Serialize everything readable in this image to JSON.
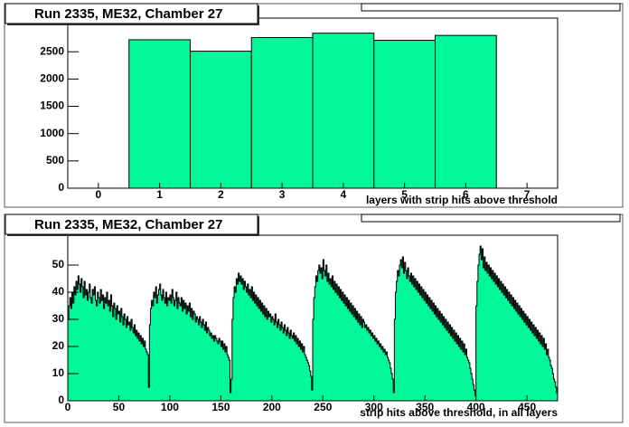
{
  "chart_data": [
    {
      "type": "histogram",
      "title": "Run 2335, ME32, Chamber 27",
      "x_label": "layers with strip hits above threshold",
      "bins": [
        0.5,
        1.5,
        2.5,
        3.5,
        4.5,
        5.5,
        6.5
      ],
      "values": [
        2720,
        2510,
        2760,
        2840,
        2710,
        2800
      ],
      "color": "#00f79a",
      "xlim": [
        -0.5,
        7.5
      ],
      "ylim": [
        0,
        3117
      ],
      "xticks": [
        0,
        1,
        2,
        3,
        4,
        5,
        6,
        7
      ],
      "yticks": [
        0,
        500,
        1000,
        1500,
        2000,
        2500
      ]
    },
    {
      "type": "histogram",
      "title": "Run 2335, ME32, Chamber 27",
      "x_label": "strip hits above threshold, in all layers",
      "bins": [
        0,
        1,
        2,
        3,
        4,
        5,
        6,
        7,
        8,
        9,
        10,
        11,
        12,
        13,
        14,
        15,
        16,
        17,
        18,
        19,
        20,
        21,
        22,
        23,
        24,
        25,
        26,
        27,
        28,
        29,
        30,
        31,
        32,
        33,
        34,
        35,
        36,
        37,
        38,
        39,
        40,
        41,
        42,
        43,
        44,
        45,
        46,
        47,
        48,
        49,
        50,
        51,
        52,
        53,
        54,
        55,
        56,
        57,
        58,
        59,
        60,
        61,
        62,
        63,
        64,
        65,
        66,
        67,
        68,
        69,
        70,
        71,
        72,
        73,
        74,
        75,
        76,
        77,
        78,
        79,
        80,
        81,
        82,
        83,
        84,
        85,
        86,
        87,
        88,
        89,
        90,
        91,
        92,
        93,
        94,
        95,
        96,
        97,
        98,
        99,
        100,
        101,
        102,
        103,
        104,
        105,
        106,
        107,
        108,
        109,
        110,
        111,
        112,
        113,
        114,
        115,
        116,
        117,
        118,
        119,
        120,
        121,
        122,
        123,
        124,
        125,
        126,
        127,
        128,
        129,
        130,
        131,
        132,
        133,
        134,
        135,
        136,
        137,
        138,
        139,
        140,
        141,
        142,
        143,
        144,
        145,
        146,
        147,
        148,
        149,
        150,
        151,
        152,
        153,
        154,
        155,
        156,
        157,
        158,
        159,
        160,
        161,
        162,
        163,
        164,
        165,
        166,
        167,
        168,
        169,
        170,
        171,
        172,
        173,
        174,
        175,
        176,
        177,
        178,
        179,
        180,
        181,
        182,
        183,
        184,
        185,
        186,
        187,
        188,
        189,
        190,
        191,
        192,
        193,
        194,
        195,
        196,
        197,
        198,
        199,
        200,
        201,
        202,
        203,
        204,
        205,
        206,
        207,
        208,
        209,
        210,
        211,
        212,
        213,
        214,
        215,
        216,
        217,
        218,
        219,
        220,
        221,
        222,
        223,
        224,
        225,
        226,
        227,
        228,
        229,
        230,
        231,
        232,
        233,
        234,
        235,
        236,
        237,
        238,
        239,
        240,
        241,
        242,
        243,
        244,
        245,
        246,
        247,
        248,
        249,
        250,
        251,
        252,
        253,
        254,
        255,
        256,
        257,
        258,
        259,
        260,
        261,
        262,
        263,
        264,
        265,
        266,
        267,
        268,
        269,
        270,
        271,
        272,
        273,
        274,
        275,
        276,
        277,
        278,
        279,
        280,
        281,
        282,
        283,
        284,
        285,
        286,
        287,
        288,
        289,
        290,
        291,
        292,
        293,
        294,
        295,
        296,
        297,
        298,
        299,
        300,
        301,
        302,
        303,
        304,
        305,
        306,
        307,
        308,
        309,
        310,
        311,
        312,
        313,
        314,
        315,
        316,
        317,
        318,
        319,
        320,
        321,
        322,
        323,
        324,
        325,
        326,
        327,
        328,
        329,
        330,
        331,
        332,
        333,
        334,
        335,
        336,
        337,
        338,
        339,
        340,
        341,
        342,
        343,
        344,
        345,
        346,
        347,
        348,
        349,
        350,
        351,
        352,
        353,
        354,
        355,
        356,
        357,
        358,
        359,
        360,
        361,
        362,
        363,
        364,
        365,
        366,
        367,
        368,
        369,
        370,
        371,
        372,
        373,
        374,
        375,
        376,
        377,
        378,
        379,
        380,
        381,
        382,
        383,
        384,
        385,
        386,
        387,
        388,
        389,
        390,
        391,
        392,
        393,
        394,
        395,
        396,
        397,
        398,
        399,
        400,
        401,
        402,
        403,
        404,
        405,
        406,
        407,
        408,
        409,
        410,
        411,
        412,
        413,
        414,
        415,
        416,
        417,
        418,
        419,
        420,
        421,
        422,
        423,
        424,
        425,
        426,
        427,
        428,
        429,
        430,
        431,
        432,
        433,
        434,
        435,
        436,
        437,
        438,
        439,
        440,
        441,
        442,
        443,
        444,
        445,
        446,
        447,
        448,
        449,
        450,
        451,
        452,
        453,
        454,
        455,
        456,
        457,
        458,
        459,
        460,
        461,
        462,
        463,
        464,
        465,
        466,
        467,
        468,
        469,
        470,
        471,
        472,
        473,
        474,
        475,
        476,
        477,
        478,
        479,
        480
      ],
      "values": [
        30,
        35,
        38,
        34,
        40,
        36,
        42,
        39,
        44,
        41,
        46,
        43,
        40,
        45,
        42,
        38,
        44,
        39,
        41,
        37,
        40,
        43,
        38,
        36,
        41,
        39,
        42,
        37,
        35,
        40,
        38,
        36,
        41,
        37,
        39,
        34,
        38,
        36,
        40,
        35,
        37,
        33,
        39,
        35,
        31,
        36,
        34,
        30,
        35,
        32,
        33,
        29,
        34,
        31,
        28,
        32,
        30,
        27,
        31,
        28,
        29,
        26,
        30,
        27,
        25,
        28,
        24,
        26,
        23,
        25,
        22,
        24,
        21,
        23,
        20,
        22,
        19,
        18,
        17,
        5,
        28,
        34,
        37,
        35,
        40,
        38,
        42,
        36,
        39,
        41,
        43,
        39,
        37,
        41,
        38,
        36,
        40,
        35,
        38,
        37,
        39,
        36,
        41,
        38,
        35,
        37,
        40,
        34,
        38,
        36,
        35,
        38,
        33,
        37,
        34,
        36,
        32,
        35,
        33,
        36,
        31,
        34,
        30,
        33,
        32,
        29,
        31,
        30,
        28,
        31,
        29,
        27,
        30,
        28,
        26,
        29,
        25,
        27,
        26,
        24,
        25,
        23,
        24,
        22,
        24,
        23,
        22,
        21,
        23,
        22,
        20,
        22,
        19,
        21,
        18,
        20,
        17,
        16,
        15,
        3,
        8,
        30,
        38,
        42,
        40,
        45,
        43,
        47,
        44,
        46,
        43,
        45,
        41,
        44,
        42,
        40,
        43,
        39,
        41,
        38,
        42,
        37,
        40,
        36,
        39,
        35,
        38,
        34,
        37,
        33,
        36,
        32,
        35,
        31,
        34,
        30,
        33,
        31,
        32,
        29,
        31,
        30,
        28,
        32,
        29,
        27,
        30,
        28,
        26,
        29,
        27,
        25,
        28,
        26,
        24,
        27,
        25,
        23,
        26,
        24,
        23,
        25,
        22,
        24,
        21,
        23,
        20,
        22,
        19,
        21,
        18,
        20,
        17,
        16,
        15,
        14,
        13,
        11,
        9,
        4,
        30,
        38,
        42,
        46,
        44,
        48,
        50,
        47,
        49,
        45,
        52,
        48,
        46,
        50,
        44,
        47,
        43,
        45,
        42,
        46,
        41,
        44,
        40,
        43,
        39,
        42,
        38,
        41,
        37,
        40,
        36,
        39,
        35,
        38,
        34,
        37,
        33,
        36,
        32,
        35,
        31,
        34,
        30,
        33,
        29,
        32,
        28,
        31,
        27,
        30,
        29,
        27,
        28,
        26,
        27,
        25,
        26,
        24,
        25,
        23,
        24,
        22,
        23,
        21,
        22,
        20,
        21,
        19,
        20,
        18,
        19,
        17,
        18,
        16,
        15,
        14,
        12,
        10,
        8,
        3,
        30,
        40,
        44,
        48,
        46,
        50,
        52,
        49,
        53,
        47,
        51,
        48,
        45,
        49,
        46,
        44,
        47,
        43,
        46,
        42,
        45,
        41,
        44,
        40,
        43,
        39,
        42,
        38,
        41,
        37,
        40,
        36,
        39,
        35,
        38,
        34,
        37,
        33,
        36,
        32,
        35,
        31,
        34,
        30,
        33,
        29,
        32,
        28,
        31,
        27,
        30,
        26,
        29,
        25,
        28,
        24,
        27,
        23,
        26,
        22,
        25,
        21,
        24,
        20,
        23,
        19,
        22,
        18,
        21,
        17,
        19,
        16,
        15,
        14,
        12,
        10,
        8,
        6,
        4,
        2,
        35,
        44,
        50,
        54,
        57,
        52,
        56,
        49,
        53,
        48,
        51,
        47,
        50,
        46,
        49,
        45,
        48,
        44,
        47,
        43,
        46,
        42,
        45,
        41,
        44,
        40,
        43,
        39,
        42,
        38,
        41,
        37,
        40,
        36,
        39,
        35,
        38,
        34,
        37,
        33,
        36,
        32,
        35,
        31,
        34,
        30,
        33,
        29,
        32,
        28,
        31,
        27,
        30,
        26,
        29,
        25,
        28,
        24,
        27,
        23,
        26,
        22,
        25,
        21,
        24,
        20,
        23,
        19,
        21,
        17,
        19,
        16,
        15,
        13,
        12,
        10,
        8,
        7,
        5,
        3
      ],
      "color": "#00f79a",
      "xlim": [
        0,
        480
      ],
      "ylim": [
        0,
        61
      ],
      "xticks": [
        0,
        50,
        100,
        150,
        200,
        250,
        300,
        350,
        400,
        450
      ],
      "yticks": [
        0,
        10,
        20,
        30,
        40,
        50
      ]
    }
  ]
}
